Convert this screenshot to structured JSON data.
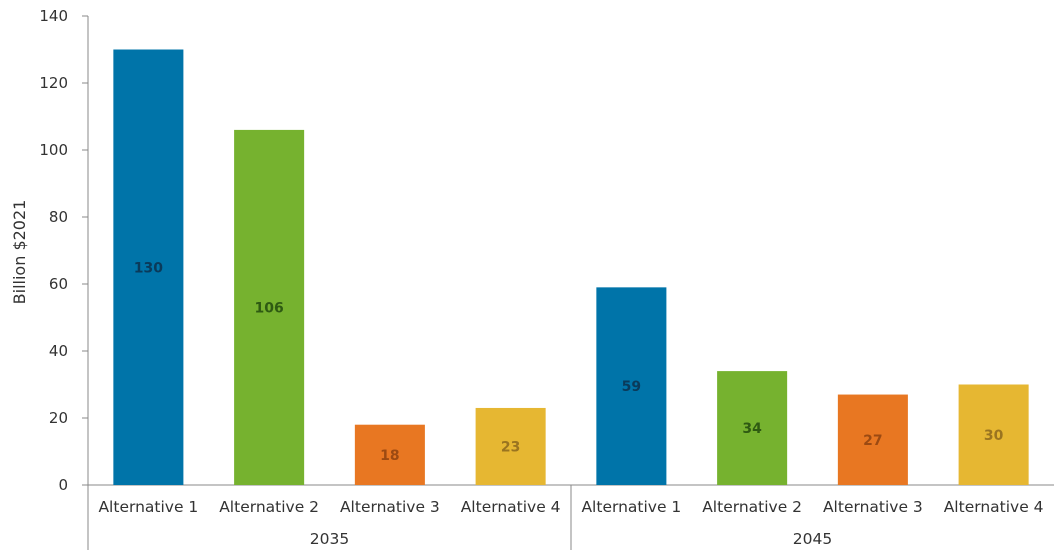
{
  "chart_data": {
    "type": "bar",
    "ylabel": "Billion $2021",
    "ylim": [
      0,
      140
    ],
    "yticks": [
      0,
      20,
      40,
      60,
      80,
      100,
      120,
      140
    ],
    "grid": false,
    "groups": [
      {
        "name": "2035",
        "categories": [
          "Alternative 1",
          "Alternative 2",
          "Alternative 3",
          "Alternative 4"
        ],
        "values": [
          130,
          106,
          18,
          23
        ],
        "labels": [
          "130",
          "106",
          "18",
          "23"
        ]
      },
      {
        "name": "2045",
        "categories": [
          "Alternative 1",
          "Alternative 2",
          "Alternative 3",
          "Alternative 4"
        ],
        "values": [
          59,
          34,
          27,
          30
        ],
        "labels": [
          "59",
          "34",
          "27",
          "30"
        ]
      }
    ],
    "colors": [
      "#0074a9",
      "#76b22f",
      "#e87722",
      "#e6b732"
    ],
    "label_colors": [
      "#0a3a5a",
      "#2e5a12",
      "#9c4a12",
      "#9a7420"
    ]
  }
}
